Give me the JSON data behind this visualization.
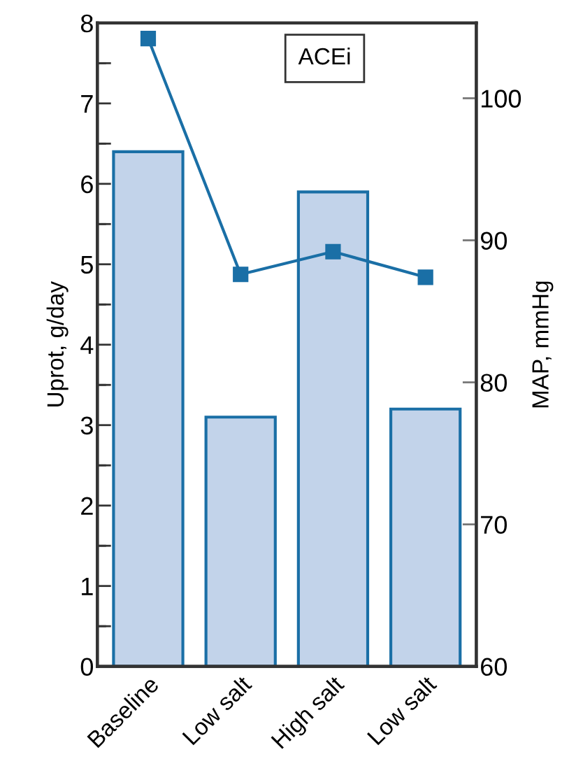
{
  "chart_data": {
    "type": "bar",
    "categories": [
      "Baseline",
      "Low salt",
      "High salt",
      "Low salt"
    ],
    "ylabel": "Uprot, g/day",
    "y2label": "MAP, mmHg",
    "annotations": [
      "ACEi"
    ],
    "ylim": [
      0,
      8
    ],
    "yticks": [
      0,
      {
        "value": 0.5,
        "label": null
      },
      1,
      {
        "value": 1.5,
        "label": null
      },
      2,
      {
        "value": 2.5,
        "label": null
      },
      3,
      {
        "value": 3.5,
        "label": null
      },
      4,
      {
        "value": 4.5,
        "label": null
      },
      5,
      {
        "value": 5.5,
        "label": null
      },
      6,
      {
        "value": 6.5,
        "label": null
      },
      7,
      {
        "value": 7.5,
        "label": null
      },
      8
    ],
    "y2lim": [
      60,
      105.3
    ],
    "y2ticks": [
      60,
      70,
      80,
      90,
      100
    ],
    "series": [
      {
        "color": "#c2d3ea",
        "values": [
          6.4,
          3.1,
          5.9,
          3.2
        ]
      },
      {
        "type": "line",
        "axis": "y2",
        "color": "#1a6fa6",
        "marker": "square",
        "line_style": "solid",
        "values": [
          104.2,
          87.6,
          89.2,
          87.4
        ]
      }
    ],
    "grid": false,
    "legend": false
  }
}
